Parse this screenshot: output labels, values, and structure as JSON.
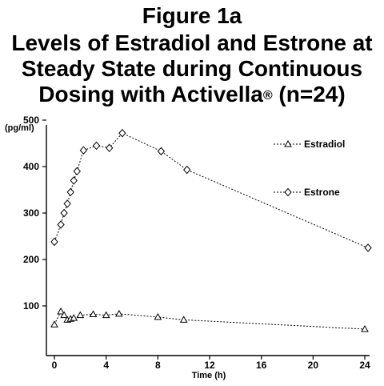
{
  "figure_label": "Figure 1a",
  "title_lines": [
    "Levels of Estradiol and Estrone at",
    "Steady State during Continuous",
    "Dosing with Activella"
  ],
  "title_registered": "®",
  "title_suffix": " (n=24)",
  "chart_data": {
    "type": "line",
    "ylabel": "(pg/ml)",
    "xlabel": "Time (h)",
    "xlim": [
      0,
      24
    ],
    "ylim": [
      0,
      500
    ],
    "x_ticks": [
      0,
      4,
      8,
      12,
      16,
      20,
      24
    ],
    "y_ticks": [
      100,
      200,
      300,
      400,
      500
    ],
    "grid": false,
    "legend_position": "top-right",
    "series": [
      {
        "name": "Estradiol",
        "marker": "triangle",
        "x": [
          0,
          0.5,
          0.75,
          1,
          1.25,
          1.5,
          2,
          3,
          4,
          5,
          8,
          10,
          24
        ],
        "y": [
          60,
          88,
          80,
          70,
          72,
          74,
          80,
          82,
          80,
          83,
          76,
          70,
          50
        ]
      },
      {
        "name": "Estrone",
        "marker": "diamond",
        "x": [
          0,
          0.5,
          0.75,
          1,
          1.25,
          1.5,
          1.75,
          2.25,
          3.25,
          4.25,
          5.25,
          8.25,
          10.25,
          24.25
        ],
        "y": [
          238,
          275,
          300,
          320,
          345,
          370,
          390,
          435,
          445,
          440,
          472,
          433,
          393,
          225
        ]
      }
    ]
  }
}
